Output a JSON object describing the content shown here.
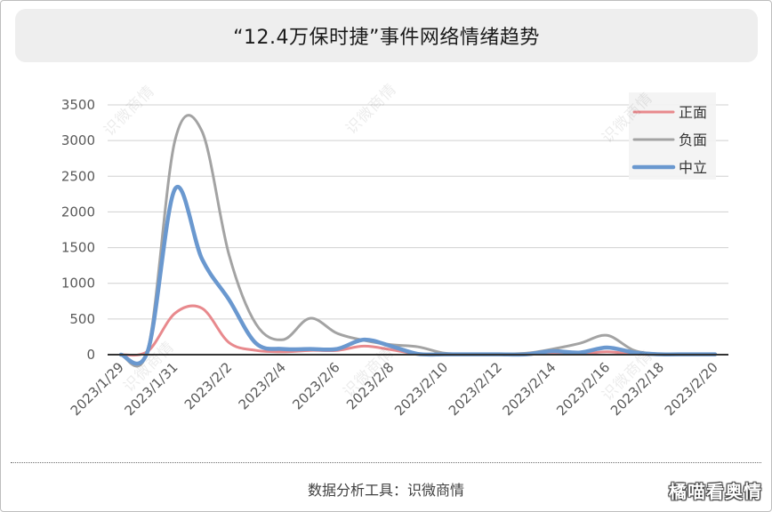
{
  "footer": "数据分析工具：识微商情",
  "watermark": "识微商情",
  "corner_watermark": "橘喵看奥情",
  "chart_data": {
    "type": "line",
    "title": "“12.4万保时捷”事件网络情绪趋势",
    "xlabel": "",
    "ylabel": "",
    "x": [
      "2023/1/29",
      "2023/1/30",
      "2023/1/31",
      "2023/2/1",
      "2023/2/2",
      "2023/2/3",
      "2023/2/4",
      "2023/2/5",
      "2023/2/6",
      "2023/2/7",
      "2023/2/8",
      "2023/2/9",
      "2023/2/10",
      "2023/2/11",
      "2023/2/12",
      "2023/2/13",
      "2023/2/14",
      "2023/2/15",
      "2023/2/16",
      "2023/2/17",
      "2023/2/18",
      "2023/2/19",
      "2023/2/20"
    ],
    "xtick_labels": [
      "2023/1/29",
      "2023/1/31",
      "2023/2/2",
      "2023/2/4",
      "2023/2/6",
      "2023/2/8",
      "2023/2/10",
      "2023/2/12",
      "2023/2/14",
      "2023/2/16",
      "2023/2/18",
      "2023/2/20"
    ],
    "ylim": [
      0,
      3500
    ],
    "yticks": [
      0,
      500,
      1000,
      1500,
      2000,
      2500,
      3000,
      3500
    ],
    "grid": true,
    "smooth": true,
    "legend": "top-right",
    "series": [
      {
        "name": "正面",
        "color": "#e8898d",
        "values": [
          0,
          50,
          580,
          650,
          170,
          60,
          40,
          60,
          60,
          120,
          70,
          10,
          5,
          5,
          5,
          5,
          20,
          10,
          40,
          10,
          5,
          5,
          5
        ]
      },
      {
        "name": "负面",
        "color": "#a3a3a3",
        "values": [
          0,
          80,
          3000,
          3130,
          1400,
          430,
          210,
          510,
          300,
          200,
          140,
          110,
          20,
          10,
          10,
          20,
          80,
          160,
          270,
          60,
          10,
          5,
          10
        ]
      },
      {
        "name": "中立",
        "color": "#6a98cf",
        "values": [
          0,
          60,
          2320,
          1340,
          770,
          160,
          80,
          80,
          80,
          210,
          120,
          10,
          5,
          5,
          5,
          5,
          50,
          30,
          100,
          30,
          5,
          5,
          5
        ]
      }
    ]
  }
}
